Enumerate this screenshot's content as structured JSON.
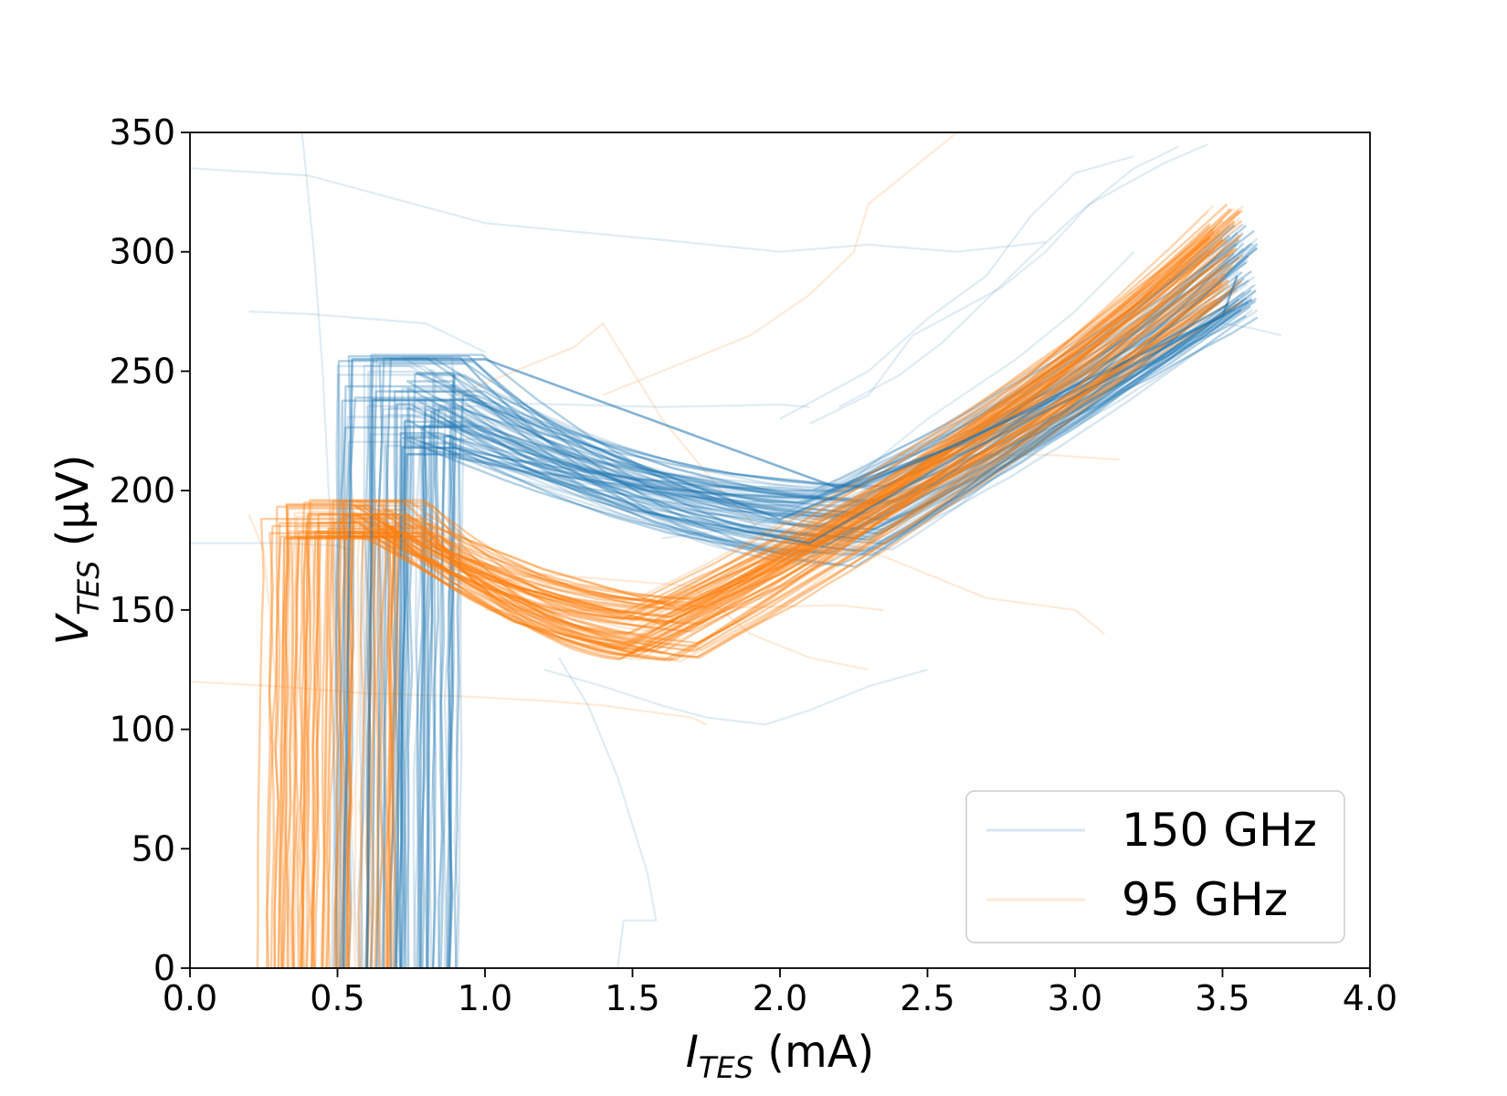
{
  "chart_data": {
    "type": "line",
    "xlabel": {
      "main": "I",
      "sub": "TES",
      "unit": " (mA)"
    },
    "ylabel": {
      "main": "V",
      "sub": "TES",
      "unit": " (µV)"
    },
    "xlim": [
      0.0,
      4.0
    ],
    "ylim": [
      0,
      350
    ],
    "x_ticks": [
      0.0,
      0.5,
      1.0,
      1.5,
      2.0,
      2.5,
      3.0,
      3.5,
      4.0
    ],
    "x_tick_labels": [
      "0.0",
      "0.5",
      "1.0",
      "1.5",
      "2.0",
      "2.5",
      "3.0",
      "3.5",
      "4.0"
    ],
    "y_ticks": [
      0,
      50,
      100,
      150,
      200,
      250,
      300,
      350
    ],
    "y_tick_labels": [
      "0",
      "50",
      "100",
      "150",
      "200",
      "250",
      "300",
      "350"
    ],
    "grid": false,
    "legend_position": "lower-right",
    "legend": [
      "150 GHz",
      "95 GHz"
    ],
    "series": [
      {
        "name": "150 GHz",
        "color": "#1f77b4",
        "representative_curves": [
          {
            "x": [
              0.52,
              0.55,
              1.0,
              1.6,
              2.2,
              2.6,
              3.0,
              3.5,
              3.55
            ],
            "y": [
              0,
              255,
              255,
              228,
              201,
              219,
              244,
              273,
              290
            ]
          },
          {
            "x": [
              0.6,
              0.62,
              0.95,
              1.5,
              2.0,
              2.5,
              3.0,
              3.52
            ],
            "y": [
              0,
              238,
              238,
              212,
              188,
              214,
              242,
              278
            ]
          },
          {
            "x": [
              0.7,
              0.72,
              0.9,
              1.5,
              2.1,
              2.6,
              3.1,
              3.6
            ],
            "y": [
              0,
              218,
              218,
              192,
              178,
              214,
              246,
              280
            ]
          }
        ]
      },
      {
        "name": "95 GHz",
        "color": "#ff7f0e",
        "representative_curves": [
          {
            "x": [
              0.38,
              0.4,
              0.72,
              1.2,
              1.65,
              2.0,
              2.5,
              3.0,
              3.5
            ],
            "y": [
              0,
              190,
              190,
              167,
              151,
              168,
              204,
              242,
              305
            ]
          },
          {
            "x": [
              0.45,
              0.47,
              0.68,
              1.2,
              1.6,
              2.0,
              2.5,
              3.0,
              3.52
            ],
            "y": [
              0,
              184,
              184,
              158,
              144,
              165,
              202,
              240,
              288
            ]
          },
          {
            "x": [
              0.3,
              0.32,
              0.6,
              1.1,
              1.5,
              2.0,
              2.5,
              3.0,
              3.48
            ],
            "y": [
              0,
              180,
              180,
              145,
              132,
              160,
              200,
              238,
              280
            ]
          }
        ]
      }
    ]
  }
}
